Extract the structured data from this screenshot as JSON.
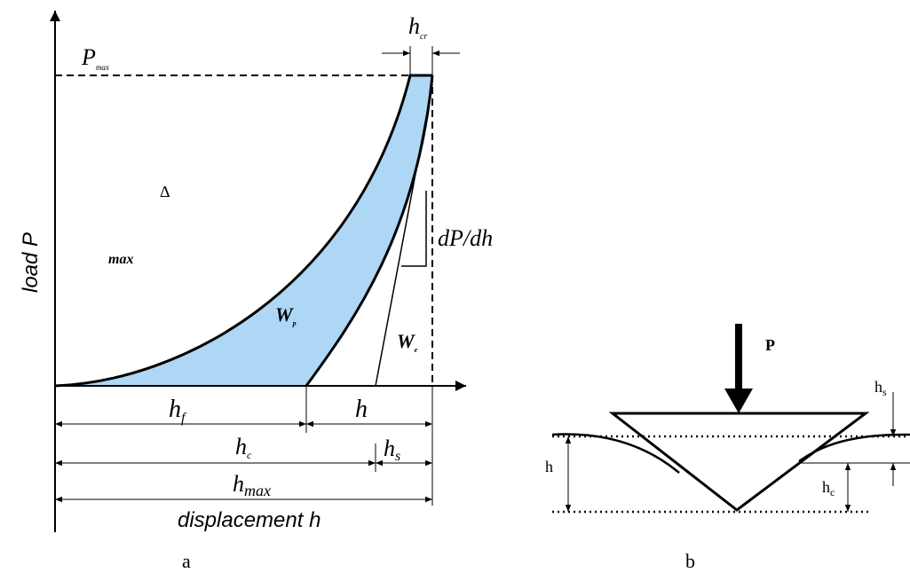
{
  "panel_a": {
    "caption": "a",
    "y_axis_label": "load P",
    "x_axis_label": "displacement h",
    "p_max": {
      "main": "P",
      "sub": "max"
    },
    "h_cr": {
      "main": "h",
      "sub": "cr"
    },
    "delta": "Δ",
    "max_label": "max",
    "slope": "dP/dh",
    "w_p": {
      "main": "W",
      "sub": "p"
    },
    "w_e": {
      "main": "W",
      "sub": "e"
    },
    "h_f": {
      "main": "h",
      "sub": "f"
    },
    "h": "h",
    "h_c": {
      "main": "h",
      "sub": "c"
    },
    "h_s": {
      "main": "h",
      "sub": "s"
    },
    "h_max": {
      "main": "h",
      "sub": "max"
    }
  },
  "panel_b": {
    "caption": "b",
    "force": "P",
    "h_s": {
      "main": "h",
      "sub": "s"
    },
    "h": "h",
    "h_c": {
      "main": "h",
      "sub": "c"
    }
  }
}
